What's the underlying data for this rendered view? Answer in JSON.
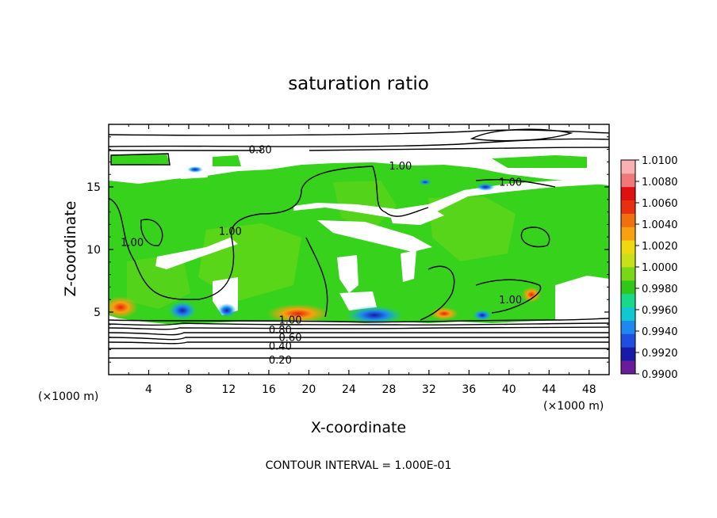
{
  "chart_data": {
    "type": "heatmap",
    "title": "saturation ratio",
    "xlabel": "X-coordinate",
    "ylabel": "Z-coordinate",
    "x_unit_label_left": "(×1000 m)",
    "x_unit_label_right": "(×1000 m)",
    "xlim": [
      0,
      50
    ],
    "ylim": [
      0,
      20
    ],
    "x_ticks": [
      "4",
      "8",
      "12",
      "16",
      "20",
      "24",
      "28",
      "32",
      "36",
      "40",
      "44",
      "48"
    ],
    "y_ticks": [
      "5",
      "10",
      "15"
    ],
    "colorbar": {
      "range": [
        0.99,
        1.01
      ],
      "ticks": [
        "1.0100",
        "1.0080",
        "1.0060",
        "1.0040",
        "1.0020",
        "1.0000",
        "0.9980",
        "0.9960",
        "0.9940",
        "0.9920",
        "0.9900"
      ],
      "colors": [
        "#6a1b9a",
        "#1a1aa8",
        "#1e4fe0",
        "#1e88f0",
        "#12c8d0",
        "#18d88a",
        "#30c818",
        "#78d818",
        "#c8e018",
        "#f0d810",
        "#f8a010",
        "#f07010",
        "#e83010",
        "#e01010",
        "#f07878",
        "#f8b0b0"
      ]
    },
    "contour_labels": [
      {
        "text": "0.80",
        "z": 18.0,
        "x": 14
      },
      {
        "text": "1.00",
        "z": 16.7,
        "x": 28
      },
      {
        "text": "1.00",
        "z": 15.4,
        "x": 39
      },
      {
        "text": "1.00",
        "z": 11.5,
        "x": 11
      },
      {
        "text": "1.00",
        "z": 10.6,
        "x": 1.2
      },
      {
        "text": "1.00",
        "z": 6.0,
        "x": 39
      },
      {
        "text": "1.00",
        "z": 4.4,
        "x": 17
      },
      {
        "text": "0.80",
        "z": 3.6,
        "x": 16
      },
      {
        "text": "0.60",
        "z": 3.0,
        "x": 17
      },
      {
        "text": "0.40",
        "z": 2.3,
        "x": 16
      },
      {
        "text": "0.20",
        "z": 1.2,
        "x": 16
      }
    ],
    "contour_interval_note": "CONTOUR INTERVAL = 1.000E-01"
  }
}
